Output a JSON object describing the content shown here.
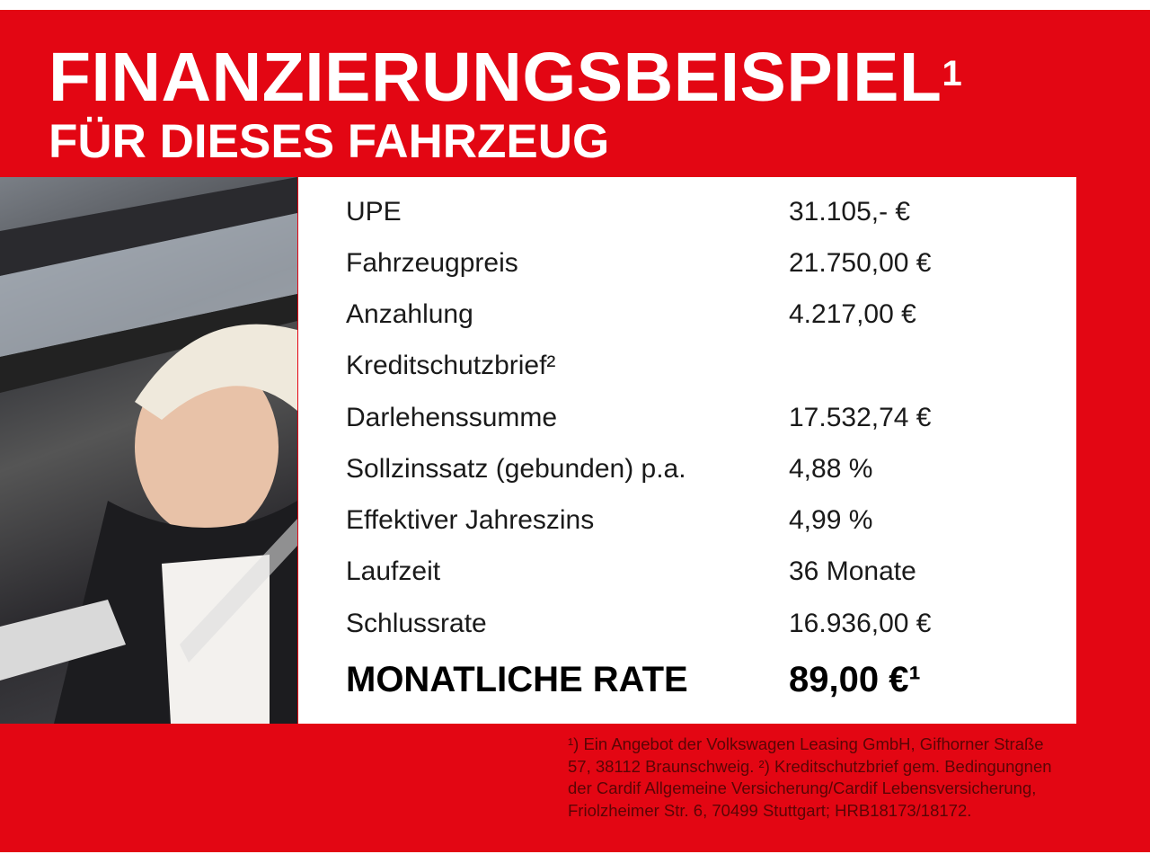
{
  "title_line1": "FINANZIERUNGSBEISPIEL",
  "title_sup": "1",
  "title_line2": "FÜR DIESES FAHRZEUG",
  "rows": [
    {
      "label": "UPE",
      "value": "31.105,- €"
    },
    {
      "label": "Fahrzeugpreis",
      "value": "21.750,00 €"
    },
    {
      "label": "Anzahlung",
      "value": "4.217,00 €"
    },
    {
      "label": "Kreditschutzbrief²",
      "value": ""
    },
    {
      "label": "Darlehenssumme",
      "value": "17.532,74 €"
    },
    {
      "label": "Sollzinssatz (gebunden) p.a.",
      "value": "4,88 %"
    },
    {
      "label": "Effektiver Jahreszins",
      "value": "4,99 %"
    },
    {
      "label": "Laufzeit",
      "value": "36 Monate"
    },
    {
      "label": "Schlussrate",
      "value": "16.936,00 €"
    }
  ],
  "monthly": {
    "label": "MONATLICHE RATE",
    "value": "89,00 €¹"
  },
  "footnote": "¹) Ein Angebot der Volkswagen Leasing GmbH, Gifhorner Straße 57, 38112 Braunschweig. ²) Kreditschutzbrief gem. Bedingungnen der Cardif Allgemeine Versicherung/Cardif Lebensversicherung, Friolzheimer Str. 6, 70499 Stuttgart; HRB18173/18172.",
  "colors": {
    "brand_red": "#e30613"
  }
}
